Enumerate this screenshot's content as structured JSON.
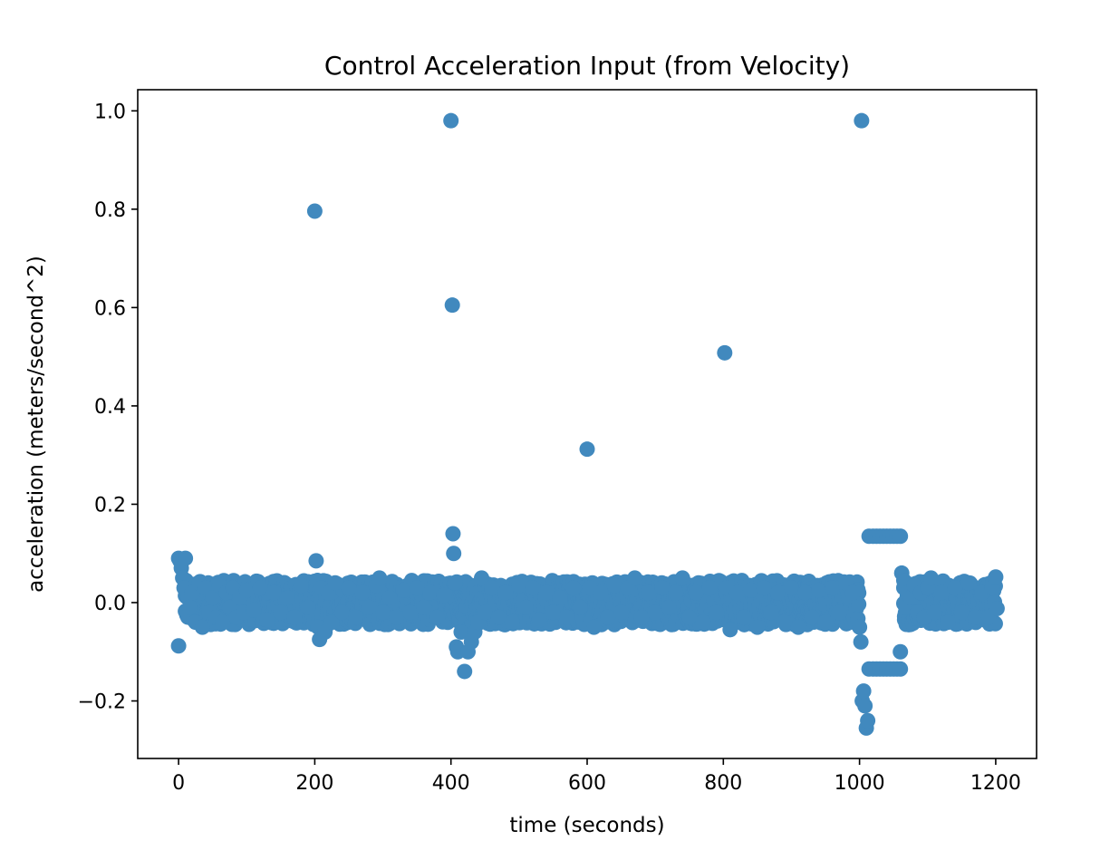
{
  "chart_data": {
    "type": "scatter",
    "title": "Control Acceleration Input (from Velocity)",
    "xlabel": "time (seconds)",
    "ylabel": "acceleration (meters/second^2)",
    "xlim": [
      -60,
      1260
    ],
    "ylim": [
      -0.317,
      1.043
    ],
    "x_ticks": [
      0,
      200,
      400,
      600,
      800,
      1000,
      1200
    ],
    "x_tick_labels": [
      "0",
      "200",
      "400",
      "600",
      "800",
      "1000",
      "1200"
    ],
    "y_ticks": [
      -0.2,
      0.0,
      0.2,
      0.4,
      0.6,
      0.8,
      1.0
    ],
    "y_tick_labels": [
      "−0.2",
      "0.0",
      "0.2",
      "0.4",
      "0.6",
      "0.8",
      "1.0"
    ],
    "grid": false,
    "marker_color": "#4189be",
    "series": [
      {
        "name": "",
        "points": [
          [
            0,
            -0.088
          ],
          [
            0,
            0.09
          ],
          [
            2,
            0.085
          ],
          [
            4,
            0.07
          ],
          [
            6,
            0.05
          ],
          [
            8,
            0.03
          ],
          [
            10,
            0.09
          ],
          [
            12,
            -0.025
          ],
          [
            14,
            0.012
          ],
          [
            16,
            -0.01
          ],
          [
            20,
            0.02
          ],
          [
            25,
            -0.04
          ],
          [
            30,
            0.04
          ],
          [
            35,
            -0.05
          ],
          [
            40,
            0.03
          ],
          [
            45,
            -0.02
          ],
          [
            50,
            0.01
          ],
          [
            55,
            -0.03
          ],
          [
            60,
            0.035
          ],
          [
            65,
            -0.04
          ],
          [
            70,
            0.02
          ],
          [
            75,
            -0.01
          ],
          [
            80,
            0.03
          ],
          [
            85,
            -0.03
          ],
          [
            90,
            0.01
          ],
          [
            95,
            -0.02
          ],
          [
            100,
            0.025
          ],
          [
            110,
            -0.015
          ],
          [
            120,
            0.03
          ],
          [
            130,
            -0.035
          ],
          [
            140,
            0.02
          ],
          [
            150,
            -0.02
          ],
          [
            160,
            0.01
          ],
          [
            170,
            -0.03
          ],
          [
            180,
            0.035
          ],
          [
            190,
            -0.01
          ],
          [
            200,
            0.796
          ],
          [
            202,
            0.085
          ],
          [
            204,
            0.045
          ],
          [
            205,
            -0.05
          ],
          [
            207,
            -0.075
          ],
          [
            210,
            0.03
          ],
          [
            215,
            -0.06
          ],
          [
            220,
            0.02
          ],
          [
            225,
            -0.04
          ],
          [
            230,
            0.04
          ],
          [
            240,
            -0.02
          ],
          [
            250,
            0.03
          ],
          [
            260,
            -0.03
          ],
          [
            270,
            0.02
          ],
          [
            280,
            -0.01
          ],
          [
            290,
            0.035
          ],
          [
            295,
            0.05
          ],
          [
            300,
            -0.02
          ],
          [
            310,
            0.01
          ],
          [
            320,
            -0.03
          ],
          [
            330,
            0.025
          ],
          [
            340,
            -0.02
          ],
          [
            350,
            0.03
          ],
          [
            360,
            -0.01
          ],
          [
            370,
            0.02
          ],
          [
            380,
            -0.03
          ],
          [
            390,
            0.015
          ],
          [
            400,
            0.98
          ],
          [
            402,
            0.605
          ],
          [
            403,
            0.14
          ],
          [
            404,
            0.1
          ],
          [
            406,
            0.04
          ],
          [
            408,
            -0.09
          ],
          [
            410,
            -0.1
          ],
          [
            415,
            -0.06
          ],
          [
            420,
            -0.14
          ],
          [
            425,
            -0.1
          ],
          [
            430,
            -0.08
          ],
          [
            435,
            -0.06
          ],
          [
            440,
            -0.04
          ],
          [
            445,
            0.05
          ],
          [
            450,
            -0.02
          ],
          [
            460,
            0.03
          ],
          [
            470,
            -0.03
          ],
          [
            480,
            0.02
          ],
          [
            490,
            -0.04
          ],
          [
            500,
            0.035
          ],
          [
            510,
            -0.01
          ],
          [
            520,
            0.03
          ],
          [
            530,
            -0.035
          ],
          [
            540,
            0.02
          ],
          [
            550,
            -0.02
          ],
          [
            560,
            0.01
          ],
          [
            570,
            -0.03
          ],
          [
            580,
            0.03
          ],
          [
            590,
            -0.01
          ],
          [
            600,
            0.312
          ],
          [
            604,
            0.03
          ],
          [
            610,
            -0.05
          ],
          [
            620,
            0.02
          ],
          [
            630,
            -0.03
          ],
          [
            640,
            0.035
          ],
          [
            650,
            -0.02
          ],
          [
            660,
            0.03
          ],
          [
            670,
            0.05
          ],
          [
            680,
            -0.03
          ],
          [
            690,
            0.02
          ],
          [
            700,
            -0.02
          ],
          [
            710,
            0.03
          ],
          [
            720,
            -0.01
          ],
          [
            730,
            0.02
          ],
          [
            740,
            0.05
          ],
          [
            750,
            -0.03
          ],
          [
            760,
            0.02
          ],
          [
            770,
            -0.04
          ],
          [
            780,
            0.03
          ],
          [
            790,
            -0.02
          ],
          [
            802,
            0.508
          ],
          [
            805,
            0.03
          ],
          [
            810,
            -0.055
          ],
          [
            820,
            0.02
          ],
          [
            830,
            -0.03
          ],
          [
            840,
            0.025
          ],
          [
            850,
            -0.05
          ],
          [
            860,
            0.03
          ],
          [
            870,
            -0.02
          ],
          [
            880,
            0.02
          ],
          [
            890,
            -0.04
          ],
          [
            900,
            0.03
          ],
          [
            910,
            -0.05
          ],
          [
            920,
            0.02
          ],
          [
            930,
            -0.03
          ],
          [
            940,
            0.025
          ],
          [
            950,
            -0.04
          ],
          [
            960,
            0.03
          ],
          [
            970,
            -0.02
          ],
          [
            980,
            0.04
          ],
          [
            990,
            0.02
          ],
          [
            1003,
            0.98
          ],
          [
            1000,
            -0.05
          ],
          [
            1002,
            -0.08
          ],
          [
            1004,
            -0.2
          ],
          [
            1006,
            -0.18
          ],
          [
            1008,
            -0.21
          ],
          [
            1010,
            -0.255
          ],
          [
            1012,
            -0.24
          ],
          [
            1014,
            0.135
          ],
          [
            1020,
            0.135
          ],
          [
            1025,
            0.135
          ],
          [
            1030,
            0.135
          ],
          [
            1035,
            0.135
          ],
          [
            1040,
            0.135
          ],
          [
            1045,
            0.135
          ],
          [
            1050,
            0.135
          ],
          [
            1055,
            0.135
          ],
          [
            1060,
            0.135
          ],
          [
            1014,
            -0.135
          ],
          [
            1020,
            -0.135
          ],
          [
            1025,
            -0.135
          ],
          [
            1030,
            -0.135
          ],
          [
            1035,
            -0.135
          ],
          [
            1040,
            -0.135
          ],
          [
            1045,
            -0.135
          ],
          [
            1050,
            -0.135
          ],
          [
            1055,
            -0.135
          ],
          [
            1060,
            -0.135
          ],
          [
            1060,
            -0.1
          ],
          [
            1062,
            0.06
          ],
          [
            1065,
            0.045
          ],
          [
            1068,
            -0.01
          ],
          [
            1070,
            0.02
          ],
          [
            1075,
            0.01
          ],
          [
            1080,
            0.035
          ],
          [
            1085,
            -0.02
          ],
          [
            1090,
            0.02
          ],
          [
            1095,
            -0.03
          ],
          [
            1100,
            0.03
          ],
          [
            1105,
            0.05
          ],
          [
            1110,
            -0.02
          ],
          [
            1120,
            0.02
          ],
          [
            1130,
            -0.04
          ],
          [
            1140,
            0.03
          ],
          [
            1150,
            -0.02
          ],
          [
            1160,
            0.04
          ],
          [
            1170,
            -0.03
          ],
          [
            1180,
            0.02
          ],
          [
            1190,
            -0.03
          ],
          [
            1195,
            0.03
          ],
          [
            1200,
            0.052
          ],
          [
            1202,
            -0.012
          ]
        ]
      }
    ]
  }
}
